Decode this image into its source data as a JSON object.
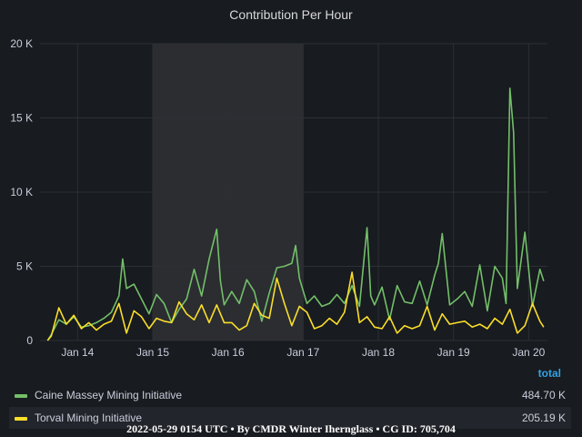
{
  "panel": {
    "title": "Contribution Per Hour"
  },
  "chart_data": {
    "type": "line",
    "title": "Contribution Per Hour",
    "x_unit": "days (Jan 13.5 – Jan 20.2)",
    "xlim": [
      13.5,
      20.25
    ],
    "ylim": [
      0,
      20000
    ],
    "yticks": [
      0,
      5000,
      10000,
      15000,
      20000
    ],
    "ytick_labels": [
      "0",
      "5 K",
      "10 K",
      "15 K",
      "20 K"
    ],
    "xticks": [
      14,
      15,
      16,
      17,
      18,
      19,
      20
    ],
    "xtick_labels": [
      "Jan 14",
      "Jan 15",
      "Jan 16",
      "Jan 17",
      "Jan 18",
      "Jan 19",
      "Jan 20"
    ],
    "highlight_region": [
      15,
      17
    ],
    "grid": true,
    "series": [
      {
        "name": "Caine Massey Mining Initiative",
        "color": "#73bf69",
        "x": [
          13.6,
          13.65,
          13.75,
          13.85,
          13.95,
          14.05,
          14.15,
          14.25,
          14.35,
          14.45,
          14.55,
          14.6,
          14.65,
          14.75,
          14.85,
          14.95,
          15.05,
          15.15,
          15.25,
          15.35,
          15.45,
          15.55,
          15.65,
          15.75,
          15.85,
          15.9,
          15.95,
          16.05,
          16.15,
          16.25,
          16.35,
          16.45,
          16.55,
          16.65,
          16.75,
          16.85,
          16.9,
          16.95,
          17.05,
          17.15,
          17.25,
          17.35,
          17.45,
          17.55,
          17.65,
          17.75,
          17.85,
          17.9,
          17.95,
          18.05,
          18.15,
          18.25,
          18.35,
          18.45,
          18.55,
          18.65,
          18.75,
          18.8,
          18.85,
          18.95,
          19.05,
          19.15,
          19.25,
          19.35,
          19.45,
          19.55,
          19.65,
          19.7,
          19.75,
          19.8,
          19.85,
          19.95,
          20.05,
          20.15,
          20.2
        ],
        "y": [
          0,
          400,
          1400,
          1100,
          1600,
          900,
          1000,
          1200,
          1500,
          1900,
          3000,
          5500,
          3500,
          3800,
          2800,
          1800,
          3100,
          2500,
          1200,
          2100,
          2800,
          4800,
          3000,
          5500,
          7500,
          4000,
          2400,
          3300,
          2500,
          4100,
          3300,
          1300,
          3200,
          4900,
          5000,
          5200,
          6400,
          4200,
          2500,
          3000,
          2300,
          2500,
          3100,
          2500,
          3700,
          2300,
          7600,
          3000,
          2400,
          3600,
          1400,
          3700,
          2600,
          2500,
          4000,
          2400,
          4400,
          5200,
          7200,
          2400,
          2800,
          3300,
          2300,
          5100,
          2000,
          5000,
          4200,
          2500,
          17000,
          14000,
          3500,
          7300,
          2300,
          4800,
          4000
        ]
      },
      {
        "name": "Torval Mining Initiative",
        "color": "#fade2a",
        "x": [
          13.6,
          13.65,
          13.75,
          13.85,
          13.95,
          14.05,
          14.15,
          14.25,
          14.35,
          14.45,
          14.55,
          14.65,
          14.75,
          14.85,
          14.95,
          15.05,
          15.15,
          15.25,
          15.35,
          15.45,
          15.55,
          15.65,
          15.75,
          15.85,
          15.95,
          16.05,
          16.15,
          16.25,
          16.35,
          16.45,
          16.55,
          16.65,
          16.75,
          16.85,
          16.95,
          17.05,
          17.15,
          17.25,
          17.35,
          17.45,
          17.55,
          17.65,
          17.75,
          17.85,
          17.95,
          18.05,
          18.15,
          18.25,
          18.35,
          18.45,
          18.55,
          18.65,
          18.75,
          18.85,
          18.95,
          19.05,
          19.15,
          19.25,
          19.35,
          19.45,
          19.55,
          19.65,
          19.75,
          19.85,
          19.95,
          20.05,
          20.15,
          20.2
        ],
        "y": [
          0,
          300,
          2200,
          1100,
          1700,
          800,
          1200,
          700,
          1100,
          1300,
          2500,
          500,
          2000,
          1600,
          800,
          1500,
          1300,
          1200,
          2600,
          1800,
          1400,
          2400,
          1200,
          2400,
          1200,
          1200,
          700,
          1000,
          2500,
          1700,
          1500,
          4200,
          2500,
          1000,
          2300,
          1900,
          800,
          1000,
          1500,
          1100,
          1900,
          4600,
          1200,
          1600,
          900,
          800,
          1600,
          500,
          1000,
          800,
          1000,
          2300,
          700,
          1800,
          1100,
          1200,
          1300,
          900,
          1100,
          800,
          1500,
          1100,
          2100,
          500,
          1000,
          2500,
          1300,
          900
        ]
      }
    ]
  },
  "legend": {
    "header": "total",
    "rows": [
      {
        "name": "Caine Massey Mining Initiative",
        "value": "484.70 K",
        "color": "#73bf69"
      },
      {
        "name": "Torval Mining Initiative",
        "value": "205.19 K",
        "color": "#fade2a"
      }
    ]
  },
  "footer": "2022-05-29 0154 UTC • By CMDR Winter Ihernglass • CG ID: 705,704"
}
